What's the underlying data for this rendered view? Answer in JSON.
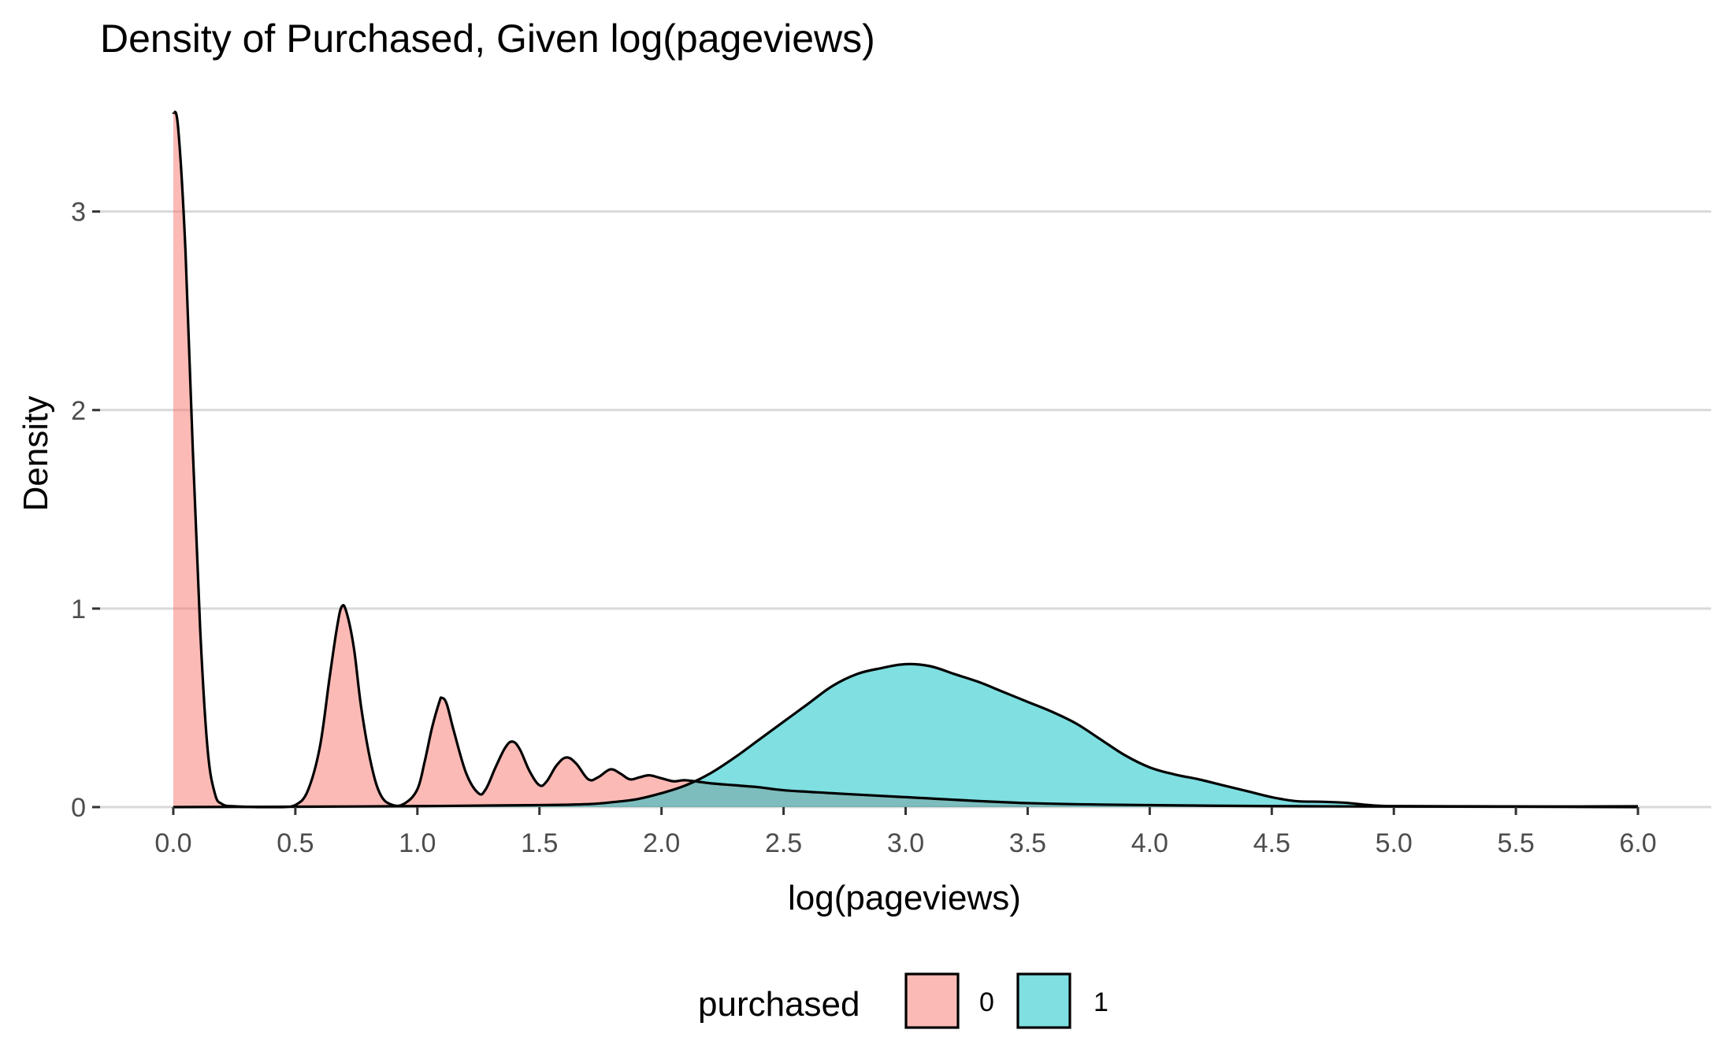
{
  "chart_data": {
    "type": "area",
    "title": "Density of Purchased, Given log(pageviews)",
    "xlabel": "log(pageviews)",
    "ylabel": "Density",
    "xlim": [
      -0.3,
      6.3
    ],
    "ylim": [
      0,
      3.55
    ],
    "x_ticks": [
      0.0,
      0.5,
      1.0,
      1.5,
      2.0,
      2.5,
      3.0,
      3.5,
      4.0,
      4.5,
      5.0,
      5.5,
      6.0
    ],
    "x_tick_labels": [
      "0.0",
      "0.5",
      "1.0",
      "1.5",
      "2.0",
      "2.5",
      "3.0",
      "3.5",
      "4.0",
      "4.5",
      "5.0",
      "5.5",
      "6.0"
    ],
    "y_ticks": [
      0,
      1,
      2,
      3
    ],
    "y_tick_labels": [
      "0",
      "1",
      "2",
      "3"
    ],
    "grid": "horizontal major only",
    "legend": {
      "title": "purchased",
      "position": "bottom",
      "entries": [
        {
          "label": "0",
          "color": "#F8766D"
        },
        {
          "label": "1",
          "color": "#00BFC4"
        }
      ]
    },
    "fill_opacity": 0.5,
    "series": [
      {
        "name": "0",
        "color": "#F8766D",
        "points": [
          [
            0.0,
            3.5
          ],
          [
            0.02,
            3.42
          ],
          [
            0.05,
            2.8
          ],
          [
            0.08,
            1.8
          ],
          [
            0.11,
            0.9
          ],
          [
            0.14,
            0.3
          ],
          [
            0.17,
            0.07
          ],
          [
            0.2,
            0.015
          ],
          [
            0.25,
            0.004
          ],
          [
            0.35,
            0.0
          ],
          [
            0.45,
            0.0
          ],
          [
            0.5,
            0.01
          ],
          [
            0.55,
            0.08
          ],
          [
            0.6,
            0.3
          ],
          [
            0.64,
            0.65
          ],
          [
            0.67,
            0.9
          ],
          [
            0.69,
            1.01
          ],
          [
            0.71,
            0.98
          ],
          [
            0.74,
            0.8
          ],
          [
            0.77,
            0.5
          ],
          [
            0.81,
            0.22
          ],
          [
            0.85,
            0.06
          ],
          [
            0.9,
            0.01
          ],
          [
            0.95,
            0.02
          ],
          [
            1.0,
            0.09
          ],
          [
            1.03,
            0.23
          ],
          [
            1.06,
            0.4
          ],
          [
            1.09,
            0.53
          ],
          [
            1.1,
            0.55
          ],
          [
            1.12,
            0.52
          ],
          [
            1.15,
            0.38
          ],
          [
            1.2,
            0.17
          ],
          [
            1.25,
            0.07
          ],
          [
            1.28,
            0.09
          ],
          [
            1.32,
            0.2
          ],
          [
            1.36,
            0.3
          ],
          [
            1.39,
            0.33
          ],
          [
            1.42,
            0.29
          ],
          [
            1.46,
            0.18
          ],
          [
            1.5,
            0.11
          ],
          [
            1.53,
            0.13
          ],
          [
            1.57,
            0.21
          ],
          [
            1.61,
            0.25
          ],
          [
            1.65,
            0.22
          ],
          [
            1.7,
            0.14
          ],
          [
            1.74,
            0.15
          ],
          [
            1.79,
            0.19
          ],
          [
            1.83,
            0.17
          ],
          [
            1.87,
            0.14
          ],
          [
            1.91,
            0.15
          ],
          [
            1.95,
            0.16
          ],
          [
            2.0,
            0.145
          ],
          [
            2.05,
            0.13
          ],
          [
            2.1,
            0.135
          ],
          [
            2.2,
            0.12
          ],
          [
            2.3,
            0.11
          ],
          [
            2.4,
            0.1
          ],
          [
            2.5,
            0.085
          ],
          [
            2.7,
            0.07
          ],
          [
            3.0,
            0.05
          ],
          [
            3.5,
            0.02
          ],
          [
            4.0,
            0.01
          ],
          [
            4.5,
            0.005
          ],
          [
            5.0,
            0.003
          ],
          [
            5.5,
            0.002
          ],
          [
            6.0,
            0.0
          ]
        ]
      },
      {
        "name": "1",
        "color": "#00BFC4",
        "points": [
          [
            0.0,
            0.0
          ],
          [
            0.5,
            0.002
          ],
          [
            1.0,
            0.005
          ],
          [
            1.5,
            0.01
          ],
          [
            1.7,
            0.015
          ],
          [
            1.8,
            0.025
          ],
          [
            1.9,
            0.04
          ],
          [
            2.0,
            0.07
          ],
          [
            2.1,
            0.11
          ],
          [
            2.2,
            0.17
          ],
          [
            2.3,
            0.25
          ],
          [
            2.4,
            0.34
          ],
          [
            2.5,
            0.43
          ],
          [
            2.6,
            0.52
          ],
          [
            2.7,
            0.61
          ],
          [
            2.8,
            0.67
          ],
          [
            2.9,
            0.7
          ],
          [
            3.0,
            0.72
          ],
          [
            3.1,
            0.71
          ],
          [
            3.2,
            0.67
          ],
          [
            3.3,
            0.63
          ],
          [
            3.4,
            0.58
          ],
          [
            3.5,
            0.53
          ],
          [
            3.6,
            0.48
          ],
          [
            3.7,
            0.42
          ],
          [
            3.8,
            0.34
          ],
          [
            3.9,
            0.26
          ],
          [
            4.0,
            0.2
          ],
          [
            4.1,
            0.165
          ],
          [
            4.2,
            0.14
          ],
          [
            4.3,
            0.11
          ],
          [
            4.4,
            0.08
          ],
          [
            4.5,
            0.05
          ],
          [
            4.6,
            0.03
          ],
          [
            4.7,
            0.027
          ],
          [
            4.8,
            0.022
          ],
          [
            4.9,
            0.01
          ],
          [
            5.0,
            0.005
          ],
          [
            5.3,
            0.004
          ],
          [
            5.6,
            0.003
          ],
          [
            6.0,
            0.004
          ]
        ]
      }
    ]
  }
}
